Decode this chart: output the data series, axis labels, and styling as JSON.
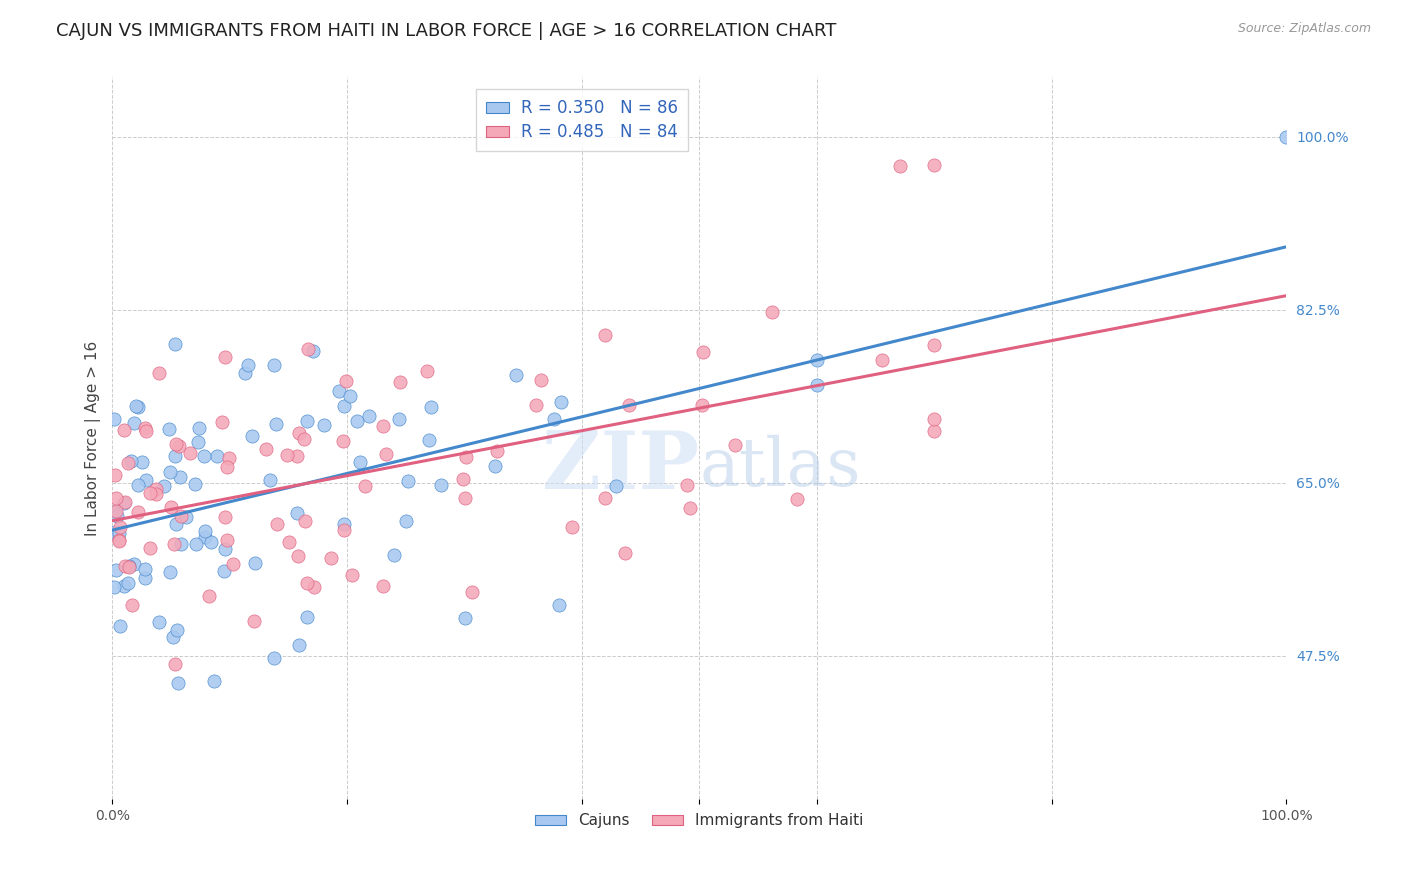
{
  "title": "CAJUN VS IMMIGRANTS FROM HAITI IN LABOR FORCE | AGE > 16 CORRELATION CHART",
  "source": "Source: ZipAtlas.com",
  "ylabel": "In Labor Force | Age > 16",
  "cajun_R": 0.35,
  "cajun_N": 86,
  "haiti_R": 0.485,
  "haiti_N": 84,
  "cajun_color": "#a8c8f0",
  "haiti_color": "#f4a8b8",
  "cajun_line_color": "#4488cc",
  "haiti_line_color": "#e06080",
  "legend_text_color": "#3366bb",
  "background_color": "#ffffff",
  "grid_color": "#cccccc",
  "title_fontsize": 13,
  "axis_label_fontsize": 11,
  "tick_fontsize": 10,
  "xlim": [
    0.0,
    1.0
  ],
  "ylim": [
    0.33,
    1.06
  ],
  "watermark_zip": "ZIP",
  "watermark_atlas": "atlas"
}
